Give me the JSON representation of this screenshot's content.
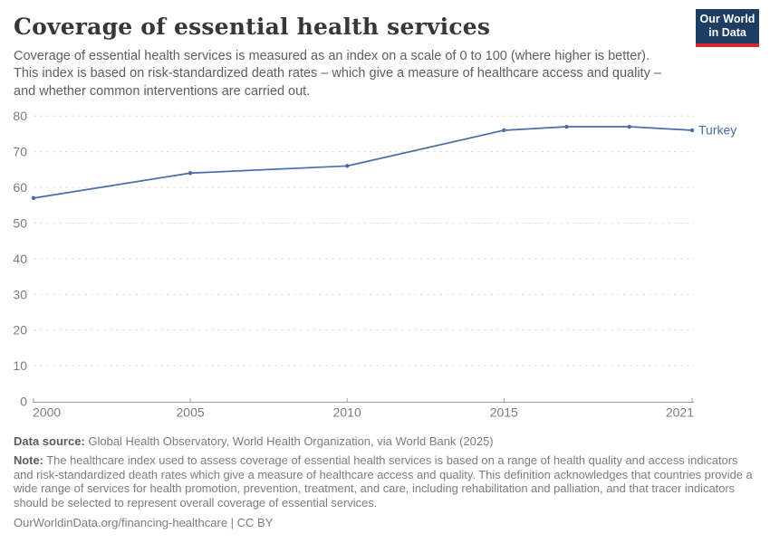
{
  "header": {
    "title": "Coverage of essential health services",
    "subtitle": "Coverage of essential health services is measured as an index on a scale of 0 to 100 (where higher is better). This index is based on risk-standardized death rates – which give a measure of healthcare access and quality – and whether common interventions are carried out."
  },
  "logo": {
    "line1": "Our World",
    "line2": "in Data"
  },
  "chart_data": {
    "type": "line",
    "title": "Coverage of essential health services",
    "xlabel": "",
    "ylabel": "",
    "x": [
      2000,
      2005,
      2010,
      2015,
      2017,
      2019,
      2021
    ],
    "series": [
      {
        "name": "Turkey",
        "values": [
          57,
          64,
          66,
          76,
          77,
          77,
          76
        ],
        "color": "#4a6da8"
      }
    ],
    "x_ticks": [
      2000,
      2005,
      2010,
      2015,
      2021
    ],
    "y_ticks": [
      0,
      10,
      20,
      30,
      40,
      50,
      60,
      70,
      80
    ],
    "xlim": [
      2000,
      2021
    ],
    "ylim": [
      0,
      80
    ],
    "grid": true,
    "legend": "end-of-line-label"
  },
  "footer": {
    "datasource_label": "Data source:",
    "datasource_text": " Global Health Observatory, World Health Organization, via World Bank (2025)",
    "note_label": "Note:",
    "note_text": " The healthcare index used to assess coverage of essential health services is based on a range of health quality and access indicators and risk-standardized death rates which give a measure of healthcare access and quality. This definition acknowledges that countries provide a wide range of services for health promotion, prevention, treatment, and care, including rehabilitation and palliation, and that tracer indicators should be selected to represent overall coverage of essential services.",
    "citation": "OurWorldinData.org/financing-healthcare | CC BY"
  },
  "colors": {
    "line": "#4a6da8",
    "grid": "#dedede",
    "axis": "#9e9e9e",
    "tick_label": "#7c7c7c",
    "title": "#373737",
    "logo_bg": "#1d3d63",
    "logo_accent": "#d42b2f"
  }
}
